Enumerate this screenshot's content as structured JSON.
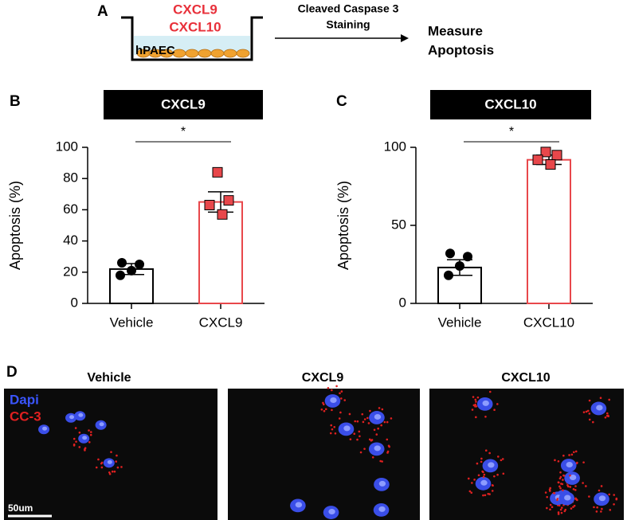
{
  "panel_labels": [
    "A",
    "B",
    "C",
    "D"
  ],
  "schematic": {
    "treatments": [
      "CXCL9",
      "CXCL10"
    ],
    "cells": "hPAEC",
    "step": [
      "Cleaved Caspase 3",
      "Staining"
    ],
    "result": [
      "Measure",
      "Apoptosis"
    ]
  },
  "chart_data": [
    {
      "type": "bar",
      "title": "CXCL9",
      "ylabel": "Apoptosis (%)",
      "categories": [
        "Vehicle",
        "CXCL9"
      ],
      "values": [
        22,
        65
      ],
      "errors": [
        3.5,
        6.5
      ],
      "points": [
        [
          26,
          25,
          21,
          18
        ],
        [
          84,
          66,
          63,
          57
        ]
      ],
      "colors": [
        "#000000",
        "#e8474b"
      ],
      "ylim": [
        0,
        100
      ],
      "yticks": [
        0,
        20,
        40,
        60,
        80,
        100
      ],
      "annotation": "*"
    },
    {
      "type": "bar",
      "title": "CXCL10",
      "ylabel": "Apoptosis (%)",
      "categories": [
        "Vehicle",
        "CXCL10"
      ],
      "values": [
        23,
        92
      ],
      "errors": [
        5,
        3
      ],
      "points": [
        [
          32,
          30,
          24,
          18
        ],
        [
          97,
          95,
          92,
          89
        ]
      ],
      "colors": [
        "#000000",
        "#e8474b"
      ],
      "ylim": [
        0,
        100
      ],
      "yticks": [
        0,
        50,
        100
      ],
      "annotation": "*"
    }
  ],
  "images": {
    "titles": [
      "Vehicle",
      "CXCL9",
      "CXCL10"
    ],
    "legend": [
      "Dapi",
      "CC-3"
    ],
    "scale_bar": "50um"
  }
}
